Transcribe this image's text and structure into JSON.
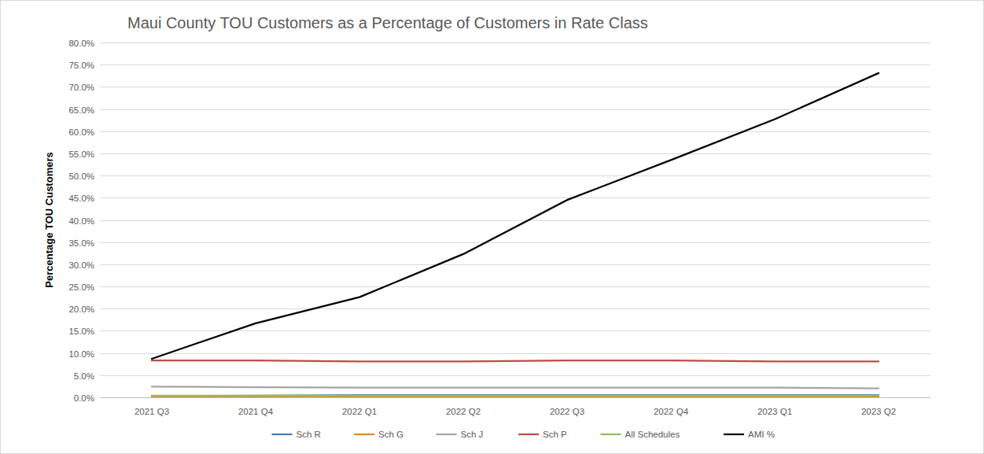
{
  "chart_data": {
    "type": "line",
    "title": "Maui County TOU Customers as a Percentage of Customers in Rate Class",
    "y_label": "Percentage TOU Customers",
    "categories": [
      "2021 Q3",
      "2021 Q4",
      "2022 Q1",
      "2022 Q2",
      "2022 Q3",
      "2022 Q4",
      "2023 Q1",
      "2023 Q2"
    ],
    "series": [
      {
        "name": "Sch R",
        "color": "#4a7ebb",
        "values": [
          0.3,
          0.4,
          0.5,
          0.5,
          0.5,
          0.5,
          0.5,
          0.5
        ]
      },
      {
        "name": "Sch G",
        "color": "#e08a2c",
        "values": [
          0.1,
          0.1,
          0.1,
          0.1,
          0.1,
          0.1,
          0.1,
          0.1
        ]
      },
      {
        "name": "Sch J",
        "color": "#a5a5a5",
        "values": [
          2.4,
          2.3,
          2.2,
          2.2,
          2.2,
          2.2,
          2.2,
          2.0
        ]
      },
      {
        "name": "Sch P",
        "color": "#be4b48",
        "values": [
          8.3,
          8.3,
          8.1,
          8.1,
          8.3,
          8.3,
          8.1,
          8.1
        ]
      },
      {
        "name": "All Schedules",
        "color": "#9bbb59",
        "values": [
          0.4,
          0.4,
          0.4,
          0.4,
          0.4,
          0.4,
          0.4,
          0.4
        ]
      },
      {
        "name": "AMI %",
        "color": "#000000",
        "values": [
          8.7,
          16.7,
          22.6,
          32.3,
          44.5,
          53.5,
          62.7,
          73.1
        ]
      }
    ],
    "ylim": [
      0,
      80
    ],
    "yticks": [
      {
        "value": 0,
        "label": "0.0%"
      },
      {
        "value": 5,
        "label": "5.0%"
      },
      {
        "value": 10,
        "label": "10.0%"
      },
      {
        "value": 15,
        "label": "15.0%"
      },
      {
        "value": 20,
        "label": "20.0%"
      },
      {
        "value": 25,
        "label": "25.0%"
      },
      {
        "value": 30,
        "label": "30.0%"
      },
      {
        "value": 35,
        "label": "35.0%"
      },
      {
        "value": 40,
        "label": "40.0%"
      },
      {
        "value": 45,
        "label": "45.0%"
      },
      {
        "value": 50,
        "label": "50.0%"
      },
      {
        "value": 55,
        "label": "55.0%"
      },
      {
        "value": 60,
        "label": "60.0%"
      },
      {
        "value": 65,
        "label": "65.0%"
      },
      {
        "value": 70,
        "label": "70.0%"
      },
      {
        "value": 75,
        "label": "75.0%"
      },
      {
        "value": 80,
        "label": "80.0%"
      }
    ],
    "grid": true,
    "legend": "bottom"
  }
}
